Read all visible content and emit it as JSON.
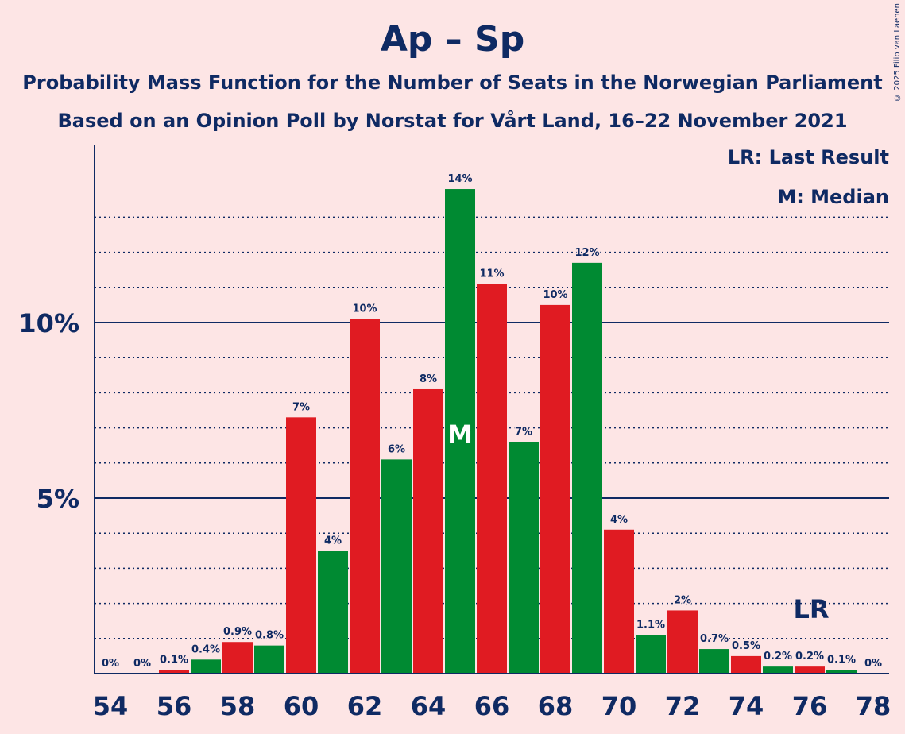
{
  "header": {
    "title": "Ap – Sp",
    "subtitle1": "Probability Mass Function for the Number of Seats in the Norwegian Parliament",
    "subtitle2": "Based on an Opinion Poll by Norstat for Vårt Land, 16–22 November 2021",
    "copyright": "© 2025 Filip van Laenen"
  },
  "legend": {
    "last_result": "LR: Last Result",
    "median": "M: Median"
  },
  "colors": {
    "background": "#fde5e5",
    "text": "#0f2a63",
    "red": "#e01b22",
    "green": "#008a32"
  },
  "chart_data": {
    "type": "bar",
    "x": [
      54,
      55,
      56,
      57,
      58,
      59,
      60,
      61,
      62,
      63,
      64,
      65,
      66,
      67,
      68,
      69,
      70,
      71,
      72,
      73,
      74,
      75,
      76,
      77,
      78
    ],
    "values": [
      0,
      0,
      0.1,
      0.4,
      0.9,
      0.8,
      7.3,
      3.5,
      10.1,
      6.1,
      8.1,
      13.8,
      11.1,
      6.6,
      10.5,
      11.7,
      4.1,
      1.1,
      1.8,
      0.7,
      0.5,
      0.2,
      0.2,
      0.1,
      0
    ],
    "labels": [
      "0%",
      "0%",
      "0.1%",
      "0.4%",
      "0.9%",
      "0.8%",
      "7%",
      "4%",
      "10%",
      "6%",
      "8%",
      "14%",
      "11%",
      "7%",
      "10%",
      "12%",
      "4%",
      "1.1%",
      "2%",
      "0.7%",
      "0.5%",
      "0.2%",
      "0.2%",
      "0.1%",
      "0%"
    ],
    "bar_colors": [
      "red",
      "green",
      "red",
      "green",
      "red",
      "green",
      "red",
      "green",
      "red",
      "green",
      "red",
      "green",
      "red",
      "green",
      "red",
      "green",
      "red",
      "green",
      "red",
      "green",
      "red",
      "green",
      "red",
      "green",
      "red"
    ],
    "x_tick_labels": [
      "54",
      "56",
      "58",
      "60",
      "62",
      "64",
      "66",
      "68",
      "70",
      "72",
      "74",
      "76",
      "78"
    ],
    "y_tick_labels": [
      "5%",
      "10%"
    ],
    "y_ticks": [
      5,
      10
    ],
    "ylim": [
      0,
      15
    ],
    "median": 65,
    "median_marker": "M",
    "last_result": 76,
    "last_result_marker": "LR"
  }
}
